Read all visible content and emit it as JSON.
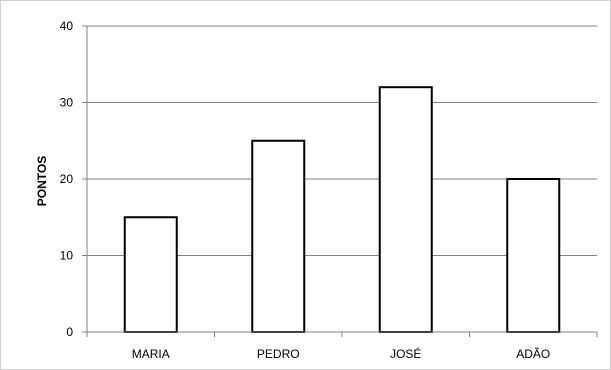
{
  "chart_data": {
    "type": "bar",
    "title": "",
    "xlabel": "",
    "ylabel": "PONTOS",
    "categories": [
      "MARIA",
      "PEDRO",
      "JOSÉ",
      "ADÃO"
    ],
    "values": [
      15,
      25,
      32,
      20
    ],
    "ylim": [
      0,
      40
    ],
    "yticks": [
      0,
      10,
      20,
      30,
      40
    ],
    "grid": "horizontal",
    "legend": "none",
    "colors": {
      "bar_fill": "#ffffff",
      "bar_stroke": "#000000",
      "grid": "#808080",
      "axis": "#808080"
    }
  }
}
